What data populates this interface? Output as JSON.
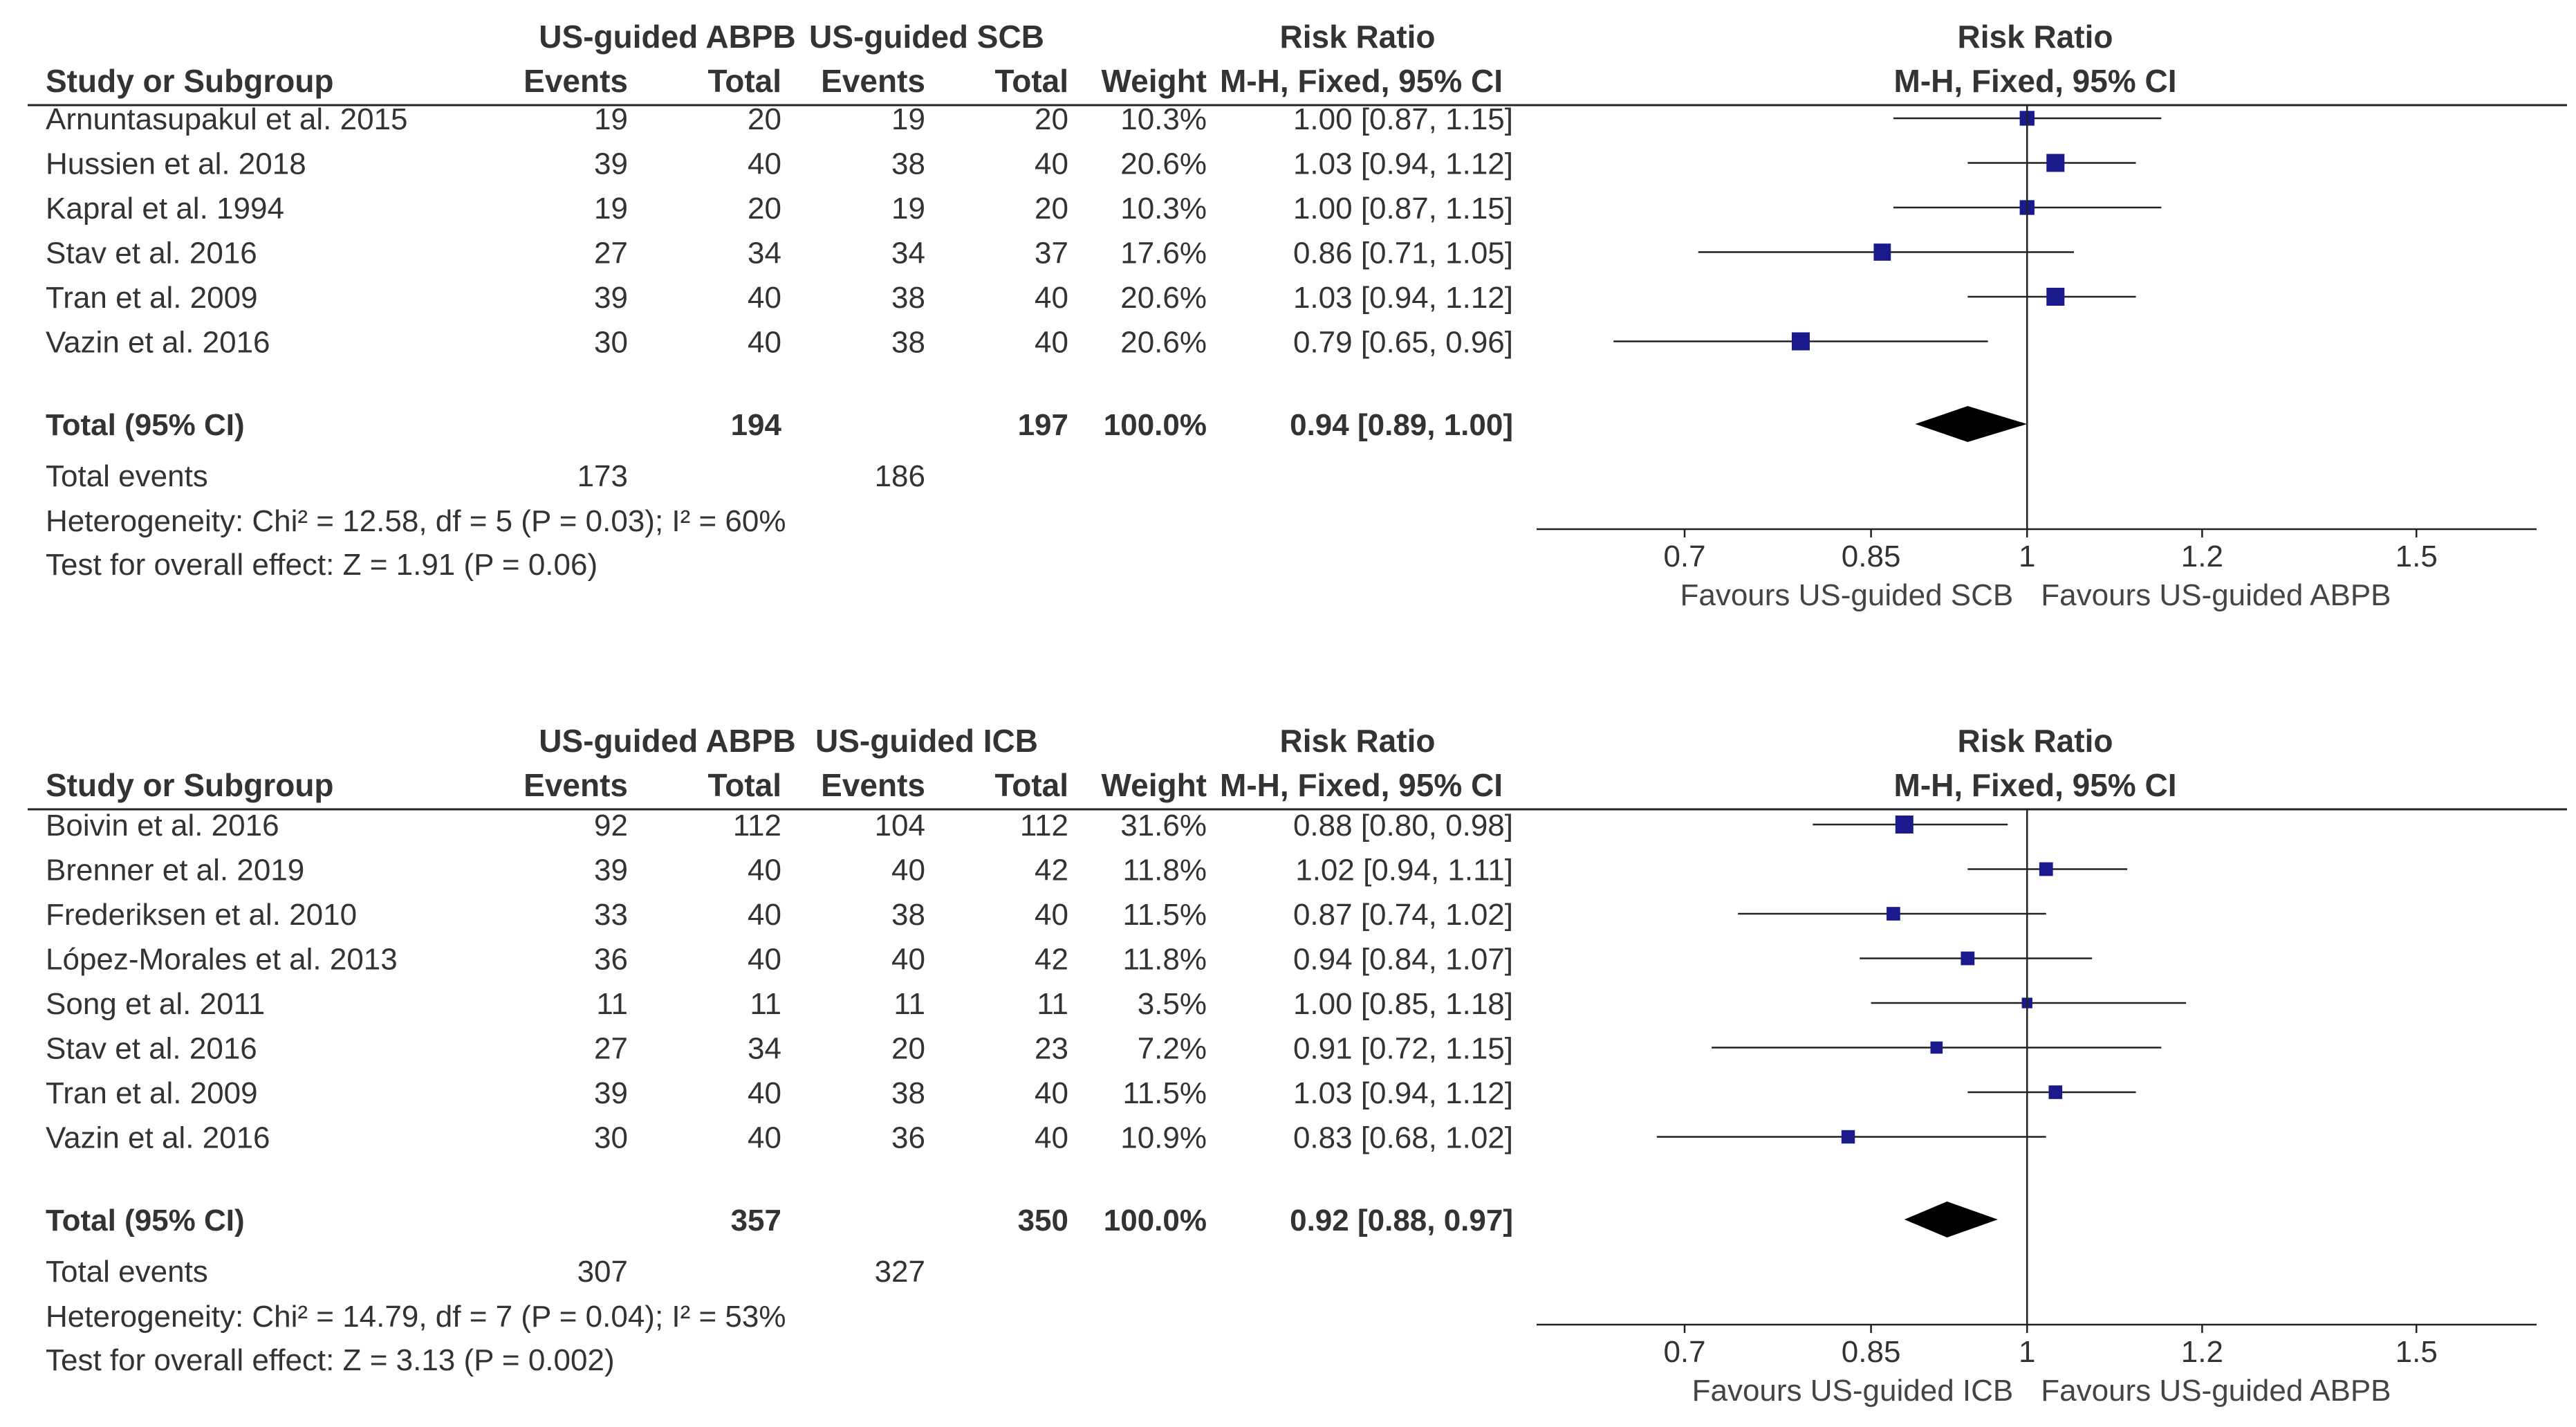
{
  "chart_data": [
    {
      "type": "forest",
      "group_headers": {
        "experimental": "US-guided ABPB",
        "control": "US-guided SCB",
        "effect": "Risk Ratio",
        "effect_method": "M-H, Fixed, 95% CI"
      },
      "column_headers": {
        "study": "Study or Subgroup",
        "events": "Events",
        "total": "Total",
        "weight": "Weight"
      },
      "studies": [
        {
          "name": "Arnuntasupakul et al. 2015",
          "e_events": "19",
          "e_total": "20",
          "c_events": "19",
          "c_total": "20",
          "weight": "10.3%",
          "ci_text": "1.00 [0.87, 1.15]",
          "rr": 1.0,
          "lo": 0.87,
          "hi": 1.15,
          "weight_pct": 10.3
        },
        {
          "name": "Hussien et al. 2018",
          "e_events": "39",
          "e_total": "40",
          "c_events": "38",
          "c_total": "40",
          "weight": "20.6%",
          "ci_text": "1.03 [0.94, 1.12]",
          "rr": 1.03,
          "lo": 0.94,
          "hi": 1.12,
          "weight_pct": 20.6
        },
        {
          "name": "Kapral et al. 1994",
          "e_events": "19",
          "e_total": "20",
          "c_events": "19",
          "c_total": "20",
          "weight": "10.3%",
          "ci_text": "1.00 [0.87, 1.15]",
          "rr": 1.0,
          "lo": 0.87,
          "hi": 1.15,
          "weight_pct": 10.3
        },
        {
          "name": "Stav et al. 2016",
          "e_events": "27",
          "e_total": "34",
          "c_events": "34",
          "c_total": "37",
          "weight": "17.6%",
          "ci_text": "0.86 [0.71, 1.05]",
          "rr": 0.86,
          "lo": 0.71,
          "hi": 1.05,
          "weight_pct": 17.6
        },
        {
          "name": "Tran et al. 2009",
          "e_events": "39",
          "e_total": "40",
          "c_events": "38",
          "c_total": "40",
          "weight": "20.6%",
          "ci_text": "1.03 [0.94, 1.12]",
          "rr": 1.03,
          "lo": 0.94,
          "hi": 1.12,
          "weight_pct": 20.6
        },
        {
          "name": "Vazin et al. 2016",
          "e_events": "30",
          "e_total": "40",
          "c_events": "38",
          "c_total": "40",
          "weight": "20.6%",
          "ci_text": "0.79 [0.65, 0.96]",
          "rr": 0.79,
          "lo": 0.65,
          "hi": 0.96,
          "weight_pct": 20.6
        }
      ],
      "total": {
        "label": "Total (95% CI)",
        "e_total": "194",
        "c_total": "197",
        "weight": "100.0%",
        "ci_text": "0.94 [0.89, 1.00]",
        "rr": 0.94,
        "lo": 0.89,
        "hi": 1.0
      },
      "total_events": {
        "label": "Total events",
        "e": "173",
        "c": "186"
      },
      "heterogeneity": "Heterogeneity: Chi² = 12.58, df = 5 (P = 0.03); I² = 60%",
      "overall_effect": "Test for overall effect: Z = 1.91 (P = 0.06)",
      "x_axis": {
        "scale": "log",
        "ticks": [
          0.7,
          0.85,
          1,
          1.2,
          1.5
        ],
        "tick_labels": [
          "0.7",
          "0.85",
          "1",
          "1.2",
          "1.5"
        ],
        "xlim": [
          0.6,
          1.7
        ]
      },
      "favours_left": "Favours US-guided SCB",
      "favours_right": "Favours US-guided ABPB"
    },
    {
      "type": "forest",
      "group_headers": {
        "experimental": "US-guided ABPB",
        "control": "US-guided ICB",
        "effect": "Risk Ratio",
        "effect_method": "M-H, Fixed, 95% CI"
      },
      "column_headers": {
        "study": "Study or Subgroup",
        "events": "Events",
        "total": "Total",
        "weight": "Weight"
      },
      "studies": [
        {
          "name": "Boivin et al. 2016",
          "e_events": "92",
          "e_total": "112",
          "c_events": "104",
          "c_total": "112",
          "weight": "31.6%",
          "ci_text": "0.88 [0.80, 0.98]",
          "rr": 0.88,
          "lo": 0.8,
          "hi": 0.98,
          "weight_pct": 31.6
        },
        {
          "name": "Brenner et al. 2019",
          "e_events": "39",
          "e_total": "40",
          "c_events": "40",
          "c_total": "42",
          "weight": "11.8%",
          "ci_text": "1.02 [0.94, 1.11]",
          "rr": 1.02,
          "lo": 0.94,
          "hi": 1.11,
          "weight_pct": 11.8
        },
        {
          "name": "Frederiksen et al. 2010",
          "e_events": "33",
          "e_total": "40",
          "c_events": "38",
          "c_total": "40",
          "weight": "11.5%",
          "ci_text": "0.87 [0.74, 1.02]",
          "rr": 0.87,
          "lo": 0.74,
          "hi": 1.02,
          "weight_pct": 11.5
        },
        {
          "name": "López-Morales et al. 2013",
          "e_events": "36",
          "e_total": "40",
          "c_events": "40",
          "c_total": "42",
          "weight": "11.8%",
          "ci_text": "0.94 [0.84, 1.07]",
          "rr": 0.94,
          "lo": 0.84,
          "hi": 1.07,
          "weight_pct": 11.8
        },
        {
          "name": "Song et al. 2011",
          "e_events": "11",
          "e_total": "11",
          "c_events": "11",
          "c_total": "11",
          "weight": "3.5%",
          "ci_text": "1.00 [0.85, 1.18]",
          "rr": 1.0,
          "lo": 0.85,
          "hi": 1.18,
          "weight_pct": 3.5
        },
        {
          "name": "Stav et al. 2016",
          "e_events": "27",
          "e_total": "34",
          "c_events": "20",
          "c_total": "23",
          "weight": "7.2%",
          "ci_text": "0.91 [0.72, 1.15]",
          "rr": 0.91,
          "lo": 0.72,
          "hi": 1.15,
          "weight_pct": 7.2
        },
        {
          "name": "Tran et al. 2009",
          "e_events": "39",
          "e_total": "40",
          "c_events": "38",
          "c_total": "40",
          "weight": "11.5%",
          "ci_text": "1.03 [0.94, 1.12]",
          "rr": 1.03,
          "lo": 0.94,
          "hi": 1.12,
          "weight_pct": 11.5
        },
        {
          "name": "Vazin et al. 2016",
          "e_events": "30",
          "e_total": "40",
          "c_events": "36",
          "c_total": "40",
          "weight": "10.9%",
          "ci_text": "0.83 [0.68, 1.02]",
          "rr": 0.83,
          "lo": 0.68,
          "hi": 1.02,
          "weight_pct": 10.9
        }
      ],
      "total": {
        "label": "Total (95% CI)",
        "e_total": "357",
        "c_total": "350",
        "weight": "100.0%",
        "ci_text": "0.92 [0.88, 0.97]",
        "rr": 0.92,
        "lo": 0.88,
        "hi": 0.97
      },
      "total_events": {
        "label": "Total events",
        "e": "307",
        "c": "327"
      },
      "heterogeneity": "Heterogeneity: Chi² = 14.79, df = 7 (P = 0.04); I² = 53%",
      "overall_effect": "Test for overall effect: Z = 3.13 (P = 0.002)",
      "x_axis": {
        "scale": "log",
        "ticks": [
          0.7,
          0.85,
          1,
          1.2,
          1.5
        ],
        "tick_labels": [
          "0.7",
          "0.85",
          "1",
          "1.2",
          "1.5"
        ],
        "xlim": [
          0.6,
          1.7
        ]
      },
      "favours_left": "Favours US-guided ICB",
      "favours_right": "Favours US-guided ABPB"
    }
  ],
  "colors": {
    "marker": "#1a1a8c",
    "line": "#222222",
    "text": "#333333"
  }
}
